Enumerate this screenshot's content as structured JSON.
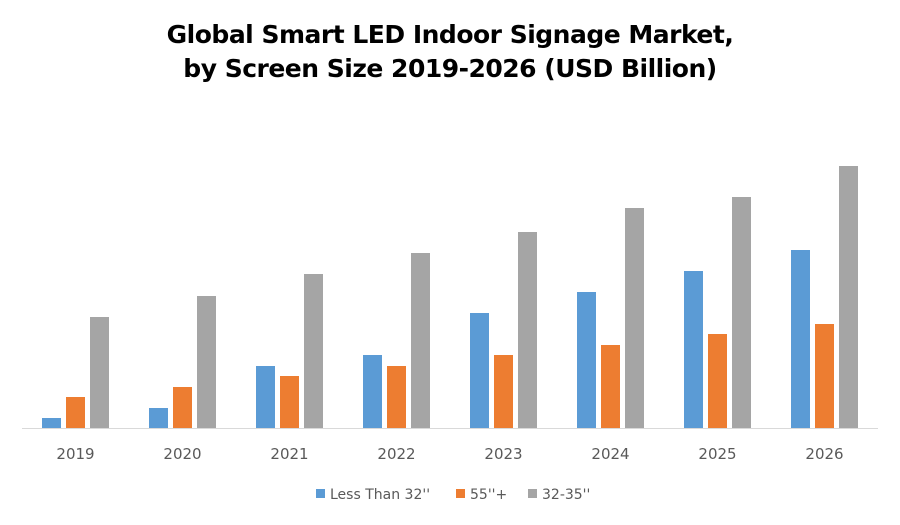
{
  "chart_data": {
    "type": "bar",
    "title": "Global Smart LED Indoor Signage Market,",
    "subtitle": "by Screen Size 2019-2026 (USD Billion)",
    "xlabel": "",
    "ylabel": "",
    "categories": [
      "2019",
      "2020",
      "2021",
      "2022",
      "2023",
      "2024",
      "2025",
      "2026"
    ],
    "series": [
      {
        "name": "Less Than 32''",
        "color": "#5B9BD5",
        "values": [
          10,
          20,
          62,
          73,
          115,
          136,
          157,
          178
        ]
      },
      {
        "name": "55''+",
        "color": "#ED7D31",
        "values": [
          31,
          41,
          52,
          62,
          73,
          83,
          94,
          104
        ]
      },
      {
        "name": "32-35''",
        "color": "#A5A5A5",
        "values": [
          111,
          132,
          154,
          175,
          196,
          220,
          231,
          262
        ]
      }
    ],
    "ylim": [
      0,
      270
    ],
    "y_axis_shown": false,
    "grid": false,
    "legend": "bottom"
  }
}
